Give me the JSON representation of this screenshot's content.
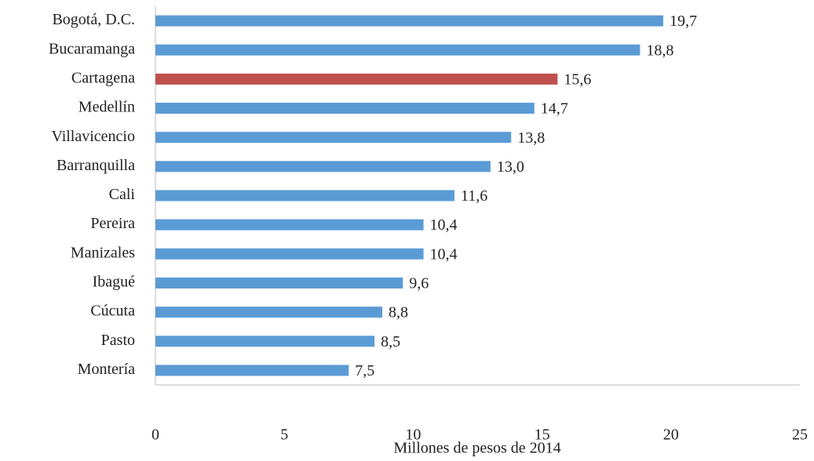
{
  "chart_data": {
    "type": "bar",
    "orientation": "horizontal",
    "x_label": "Millones de pesos de 2014",
    "categories": [
      "Bogotá, D.C.",
      "Bucaramanga",
      "Cartagena",
      "Medellín",
      "Villavicencio",
      "Barranquilla",
      "Cali",
      "Pereira",
      "Manizales",
      "Ibagué",
      "Cúcuta",
      "Pasto",
      "Montería"
    ],
    "values": [
      19.7,
      18.8,
      15.6,
      14.7,
      13.8,
      13.0,
      11.6,
      10.4,
      10.4,
      9.6,
      8.8,
      8.5,
      7.5
    ],
    "value_labels": [
      "19,7",
      "18,8",
      "15,6",
      "14,7",
      "13,8",
      "13,0",
      "11,6",
      "10,4",
      "10,4",
      "9,6",
      "8,8",
      "8,5",
      "7,5"
    ],
    "colors": [
      "#5b9bd5",
      "#5b9bd5",
      "#c0504d",
      "#5b9bd5",
      "#5b9bd5",
      "#5b9bd5",
      "#5b9bd5",
      "#5b9bd5",
      "#5b9bd5",
      "#5b9bd5",
      "#5b9bd5",
      "#5b9bd5",
      "#5b9bd5"
    ],
    "xlim": [
      0,
      25
    ],
    "xticks": [
      0,
      5,
      10,
      15,
      20,
      25
    ],
    "grid": false
  }
}
